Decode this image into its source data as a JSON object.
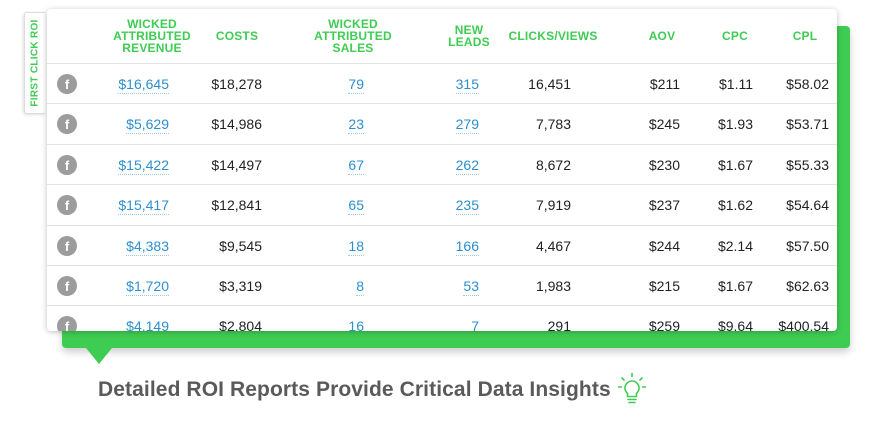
{
  "side_tab": "FIRST CLICK ROI",
  "headers": {
    "revenue": "WICKED ATTRIBUTED REVENUE",
    "costs": "COSTS",
    "sales": "WICKED ATTRIBUTED SALES",
    "leads": "NEW LEADS",
    "clicks": "CLICKS/VIEWS",
    "aov": "AOV",
    "cpc": "CPC",
    "cpl": "CPL"
  },
  "rows": [
    {
      "icon": "f",
      "revenue": "$16,645",
      "costs": "$18,278",
      "sales": "79",
      "leads": "315",
      "clicks": "16,451",
      "aov": "$211",
      "cpc": "$1.11",
      "cpl": "$58.02"
    },
    {
      "icon": "f",
      "revenue": "$5,629",
      "costs": "$14,986",
      "sales": "23",
      "leads": "279",
      "clicks": "7,783",
      "aov": "$245",
      "cpc": "$1.93",
      "cpl": "$53.71"
    },
    {
      "icon": "f",
      "revenue": "$15,422",
      "costs": "$14,497",
      "sales": "67",
      "leads": "262",
      "clicks": "8,672",
      "aov": "$230",
      "cpc": "$1.67",
      "cpl": "$55.33"
    },
    {
      "icon": "f",
      "revenue": "$15,417",
      "costs": "$12,841",
      "sales": "65",
      "leads": "235",
      "clicks": "7,919",
      "aov": "$237",
      "cpc": "$1.62",
      "cpl": "$54.64"
    },
    {
      "icon": "f",
      "revenue": "$4,383",
      "costs": "$9,545",
      "sales": "18",
      "leads": "166",
      "clicks": "4,467",
      "aov": "$244",
      "cpc": "$2.14",
      "cpl": "$57.50"
    },
    {
      "icon": "f",
      "revenue": "$1,720",
      "costs": "$3,319",
      "sales": "8",
      "leads": "53",
      "clicks": "1,983",
      "aov": "$215",
      "cpc": "$1.67",
      "cpl": "$62.63"
    },
    {
      "icon": "f",
      "revenue": "$4,149",
      "costs": "$2,804",
      "sales": "16",
      "leads": "7",
      "clicks": "291",
      "aov": "$259",
      "cpc": "$9.64",
      "cpl": "$400.54"
    }
  ],
  "caption": "Detailed ROI Reports Provide Critical Data Insights",
  "icons": {
    "row_icon": "facebook-icon",
    "caption_icon": "lightbulb-icon"
  },
  "colors": {
    "accent": "#3fcc53",
    "link": "#2c8fd0",
    "icon_gray": "#9c9c9c"
  }
}
